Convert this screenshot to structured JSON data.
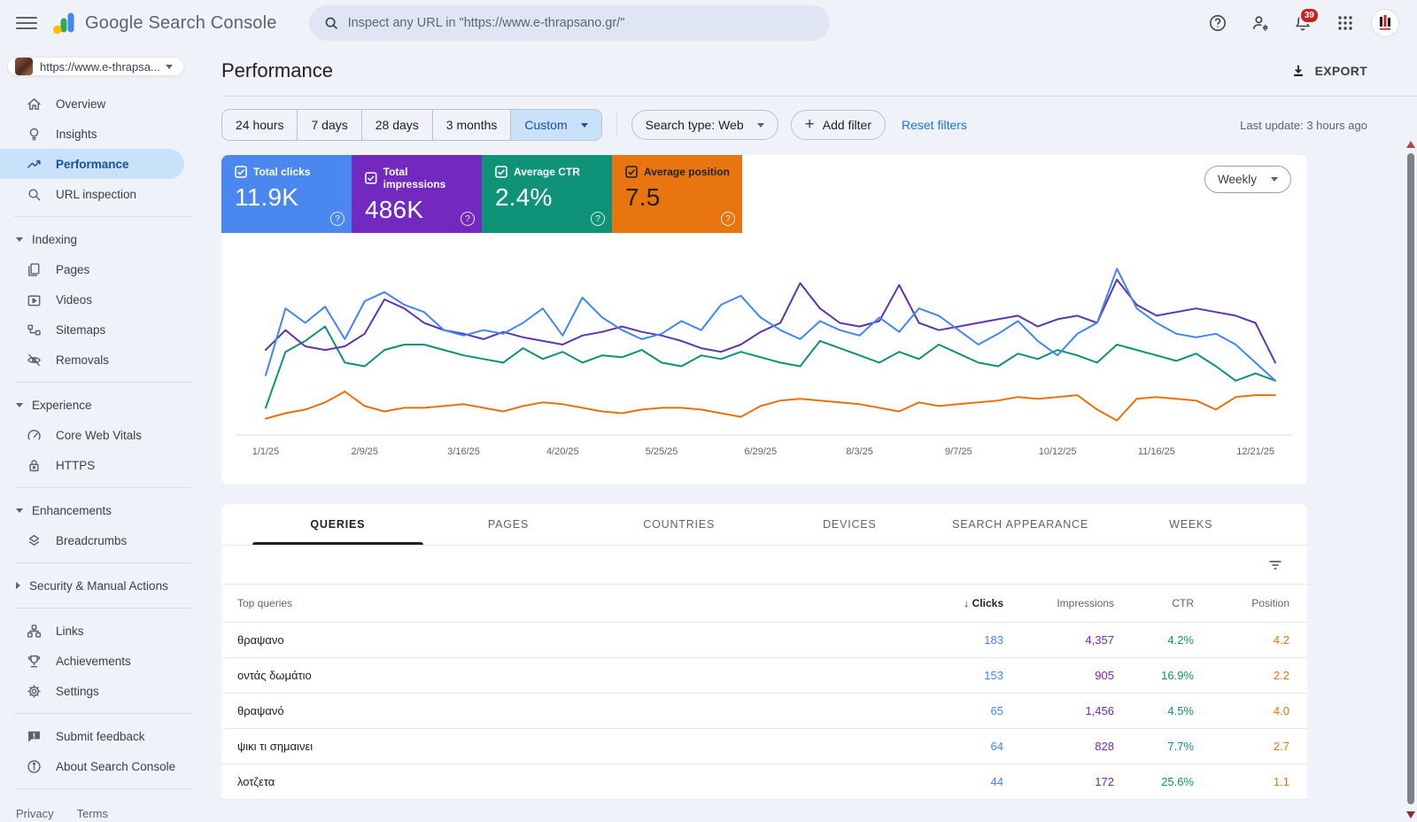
{
  "topbar": {
    "app_title": "Google Search Console",
    "search_placeholder": "Inspect any URL in \"https://www.e-thrapsano.gr/\"",
    "notifications_badge": "39"
  },
  "sidebar": {
    "property_label": "https://www.e-thrapsa...",
    "sections": [
      {
        "items": [
          {
            "icon": "home",
            "label": "Overview",
            "active": false
          },
          {
            "icon": "lightbulb",
            "label": "Insights",
            "active": false
          },
          {
            "icon": "trend",
            "label": "Performance",
            "active": true
          },
          {
            "icon": "search",
            "label": "URL inspection",
            "active": false
          }
        ]
      },
      {
        "header": {
          "label": "Indexing",
          "state": "expanded"
        },
        "items": [
          {
            "icon": "pages",
            "label": "Pages"
          },
          {
            "icon": "video",
            "label": "Videos"
          },
          {
            "icon": "sitemap",
            "label": "Sitemaps"
          },
          {
            "icon": "eye-off",
            "label": "Removals"
          }
        ]
      },
      {
        "header": {
          "label": "Experience",
          "state": "expanded"
        },
        "items": [
          {
            "icon": "gauge",
            "label": "Core Web Vitals"
          },
          {
            "icon": "lock",
            "label": "HTTPS"
          }
        ]
      },
      {
        "header": {
          "label": "Enhancements",
          "state": "expanded"
        },
        "items": [
          {
            "icon": "layers",
            "label": "Breadcrumbs"
          }
        ]
      },
      {
        "header": {
          "label": "Security & Manual Actions",
          "state": "collapsed"
        },
        "items": []
      },
      {
        "items": [
          {
            "icon": "tree",
            "label": "Links"
          },
          {
            "icon": "trophy",
            "label": "Achievements"
          },
          {
            "icon": "gear",
            "label": "Settings"
          }
        ]
      }
    ],
    "footer_items": [
      {
        "icon": "feedback",
        "label": "Submit feedback"
      },
      {
        "icon": "info",
        "label": "About Search Console"
      }
    ],
    "legal": [
      "Privacy",
      "Terms"
    ]
  },
  "page_header": {
    "title": "Performance",
    "export_label": "EXPORT",
    "last_update": "Last update: 3 hours ago"
  },
  "filters": {
    "date_ranges": [
      "24 hours",
      "7 days",
      "28 days",
      "3 months"
    ],
    "custom_label": "Custom",
    "search_type_label": "Search type: Web",
    "add_filter_label": "Add filter",
    "reset_label": "Reset filters"
  },
  "metrics": [
    {
      "id": "clicks",
      "label": "Total clicks",
      "value": "11.9K",
      "bg": "#4a87ee",
      "fg": "#ffffff"
    },
    {
      "id": "impressions",
      "label": "Total impressions",
      "value": "486K",
      "bg": "#7329bf",
      "fg": "#ffffff"
    },
    {
      "id": "ctr",
      "label": "Average CTR",
      "value": "2.4%",
      "bg": "#0e9379",
      "fg": "#ffffff"
    },
    {
      "id": "position",
      "label": "Average position",
      "value": "7.5",
      "bg": "#e8750f",
      "fg": "#202124"
    }
  ],
  "chart_data": {
    "type": "line",
    "interval": "Weekly",
    "legend_position": "none",
    "grid": false,
    "x_labels": [
      "1/1/25",
      "2/9/25",
      "3/16/25",
      "4/20/25",
      "5/25/25",
      "6/29/25",
      "8/3/25",
      "9/7/25",
      "10/12/25",
      "11/16/25",
      "12/21/25"
    ],
    "label_step": 5,
    "y_unit": "normalized 0-100 (no visible y axis)",
    "series": [
      {
        "name": "Clicks",
        "color": "#4285f4",
        "values": [
          33,
          70,
          62,
          71,
          53,
          74,
          79,
          72,
          68,
          58,
          55,
          58,
          56,
          62,
          70,
          55,
          76,
          65,
          58,
          53,
          56,
          63,
          58,
          72,
          77,
          65,
          58,
          53,
          63,
          58,
          55,
          65,
          57,
          70,
          66,
          58,
          50,
          56,
          63,
          52,
          44,
          56,
          62,
          92,
          70,
          62,
          56,
          54,
          56,
          50,
          40,
          30
        ]
      },
      {
        "name": "Impressions",
        "color": "#5e35b1",
        "values": [
          47,
          58,
          49,
          47,
          49,
          56,
          75,
          70,
          62,
          58,
          56,
          53,
          57,
          54,
          52,
          50,
          55,
          57,
          60,
          57,
          55,
          52,
          48,
          46,
          50,
          57,
          62,
          84,
          70,
          62,
          60,
          63,
          83,
          62,
          58,
          60,
          62,
          64,
          66,
          60,
          64,
          66,
          62,
          86,
          72,
          66,
          68,
          70,
          68,
          66,
          62,
          40
        ]
      },
      {
        "name": "CTR",
        "color": "#0d9277",
        "values": [
          15,
          46,
          52,
          60,
          40,
          38,
          47,
          50,
          50,
          47,
          44,
          42,
          40,
          48,
          42,
          46,
          40,
          44,
          43,
          47,
          40,
          38,
          44,
          42,
          46,
          43,
          40,
          38,
          52,
          48,
          44,
          40,
          46,
          42,
          50,
          45,
          40,
          38,
          45,
          42,
          47,
          44,
          40,
          50,
          47,
          44,
          41,
          45,
          38,
          30,
          34,
          30
        ]
      },
      {
        "name": "Position",
        "color": "#e8710a",
        "values": [
          9,
          12,
          14,
          18,
          24,
          16,
          13,
          15,
          15,
          16,
          17,
          15,
          13,
          16,
          18,
          17,
          15,
          13,
          12,
          14,
          15,
          15,
          14,
          12,
          10,
          16,
          19,
          20,
          19,
          18,
          17,
          15,
          13,
          18,
          16,
          17,
          18,
          19,
          21,
          20,
          21,
          22,
          14,
          8,
          20,
          21,
          20,
          19,
          14,
          21,
          22,
          22
        ]
      }
    ]
  },
  "table": {
    "tabs": [
      "QUERIES",
      "PAGES",
      "COUNTRIES",
      "DEVICES",
      "SEARCH APPEARANCE",
      "WEEKS"
    ],
    "active_tab": "QUERIES",
    "columns": [
      "Top queries",
      "Clicks",
      "Impressions",
      "CTR",
      "Position"
    ],
    "sort_column": "Clicks",
    "sort_arrow": "↓",
    "value_colors": {
      "clicks": "#4285f4",
      "impressions": "#7326bb",
      "ctr": "#0d9277",
      "position": "#e8740e"
    },
    "rows": [
      {
        "query": "θραψανο",
        "clicks": "183",
        "impressions": "4,357",
        "ctr": "4.2%",
        "position": "4.2"
      },
      {
        "query": "οντάς δωμάτιο",
        "clicks": "153",
        "impressions": "905",
        "ctr": "16.9%",
        "position": "2.2"
      },
      {
        "query": "θραψανό",
        "clicks": "65",
        "impressions": "1,456",
        "ctr": "4.5%",
        "position": "4.0"
      },
      {
        "query": "ψικι τι σημαινει",
        "clicks": "64",
        "impressions": "828",
        "ctr": "7.7%",
        "position": "2.7"
      },
      {
        "query": "λοτζετα",
        "clicks": "44",
        "impressions": "172",
        "ctr": "25.6%",
        "position": "1.1"
      }
    ]
  }
}
